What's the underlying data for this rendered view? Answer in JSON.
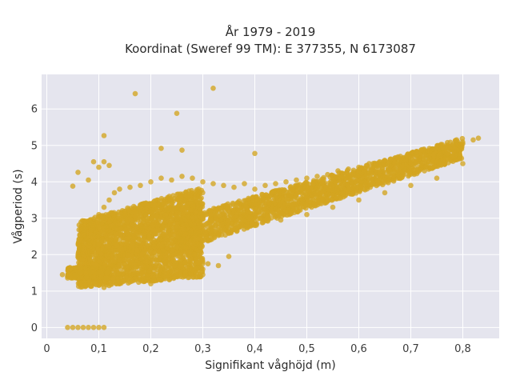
{
  "chart_data": {
    "type": "scatter",
    "title": [
      "År 1979 - 2019",
      "Koordinat (Sweref 99 TM): E 377355, N 6173087"
    ],
    "xlabel": "Signifikant våghöjd (m)",
    "ylabel": "Vågperiod (s)",
    "xlim": [
      -0.01,
      0.87
    ],
    "ylim": [
      -0.3,
      6.95
    ],
    "xticks": [
      0,
      0.1,
      0.2,
      0.3,
      0.4,
      0.5,
      0.6,
      0.7,
      0.8
    ],
    "xtick_labels": [
      "0",
      "0,1",
      "0,2",
      "0,3",
      "0,4",
      "0,5",
      "0,6",
      "0,7",
      "0,8"
    ],
    "yticks": [
      0,
      1,
      2,
      3,
      4,
      5,
      6
    ],
    "ytick_labels": [
      "0",
      "1",
      "2",
      "3",
      "4",
      "5",
      "6"
    ],
    "grid": true,
    "legend": "none",
    "colors": {
      "marker": "#D4A520",
      "plot_bg": "#E5E5EE",
      "grid": "#ffffff"
    },
    "series": [
      {
        "points": [
          [
            0.04,
            0
          ],
          [
            0.05,
            0
          ],
          [
            0.06,
            0
          ],
          [
            0.07,
            0
          ],
          [
            0.08,
            0
          ],
          [
            0.09,
            0
          ],
          [
            0.1,
            0
          ],
          [
            0.11,
            0
          ],
          [
            0.03,
            1.45
          ],
          [
            0.04,
            1.4
          ],
          [
            0.05,
            1.5
          ],
          [
            0.06,
            1.55
          ],
          [
            0.07,
            1.45
          ],
          [
            0.08,
            1.6
          ],
          [
            0.09,
            1.3
          ],
          [
            0.1,
            1.2
          ],
          [
            0.11,
            1.1
          ],
          [
            0.12,
            1.15
          ],
          [
            0.14,
            1.2
          ],
          [
            0.16,
            1.25
          ],
          [
            0.18,
            1.3
          ],
          [
            0.2,
            1.35
          ],
          [
            0.22,
            1.4
          ],
          [
            0.24,
            1.45
          ],
          [
            0.26,
            1.5
          ],
          [
            0.28,
            1.55
          ],
          [
            0.3,
            1.6
          ],
          [
            0.31,
            1.75
          ],
          [
            0.28,
            1.95
          ],
          [
            0.07,
            2.2
          ],
          [
            0.08,
            2.6
          ],
          [
            0.09,
            2.9
          ],
          [
            0.1,
            3.1
          ],
          [
            0.11,
            3.3
          ],
          [
            0.12,
            3.5
          ],
          [
            0.13,
            3.7
          ],
          [
            0.14,
            3.8
          ],
          [
            0.16,
            3.85
          ],
          [
            0.18,
            3.9
          ],
          [
            0.2,
            4.0
          ],
          [
            0.22,
            4.1
          ],
          [
            0.24,
            4.05
          ],
          [
            0.26,
            4.15
          ],
          [
            0.28,
            4.1
          ],
          [
            0.3,
            4.0
          ],
          [
            0.32,
            3.95
          ],
          [
            0.34,
            3.9
          ],
          [
            0.36,
            3.85
          ],
          [
            0.38,
            3.95
          ],
          [
            0.4,
            3.8
          ],
          [
            0.42,
            3.9
          ],
          [
            0.44,
            3.95
          ],
          [
            0.46,
            4.0
          ],
          [
            0.48,
            4.05
          ],
          [
            0.5,
            4.1
          ],
          [
            0.52,
            4.15
          ],
          [
            0.54,
            4.2
          ],
          [
            0.56,
            4.3
          ],
          [
            0.58,
            4.35
          ],
          [
            0.6,
            4.4
          ],
          [
            0.62,
            4.5
          ],
          [
            0.64,
            4.55
          ],
          [
            0.66,
            4.6
          ],
          [
            0.68,
            4.7
          ],
          [
            0.7,
            4.75
          ],
          [
            0.72,
            4.8
          ],
          [
            0.74,
            4.9
          ],
          [
            0.76,
            4.95
          ],
          [
            0.78,
            5.0
          ],
          [
            0.8,
            5.05
          ],
          [
            0.82,
            5.15
          ],
          [
            0.83,
            5.2
          ],
          [
            0.35,
            2.6
          ],
          [
            0.4,
            2.8
          ],
          [
            0.45,
            2.95
          ],
          [
            0.5,
            3.1
          ],
          [
            0.55,
            3.3
          ],
          [
            0.6,
            3.5
          ],
          [
            0.65,
            3.7
          ],
          [
            0.7,
            3.9
          ],
          [
            0.75,
            4.1
          ],
          [
            0.8,
            4.5
          ],
          [
            0.17,
            6.42
          ],
          [
            0.32,
            6.57
          ],
          [
            0.25,
            5.88
          ],
          [
            0.11,
            5.27
          ],
          [
            0.22,
            4.92
          ],
          [
            0.26,
            4.87
          ],
          [
            0.4,
            4.78
          ],
          [
            0.09,
            4.55
          ],
          [
            0.11,
            4.55
          ],
          [
            0.06,
            4.26
          ],
          [
            0.05,
            3.88
          ],
          [
            0.1,
            4.4
          ],
          [
            0.08,
            4.05
          ],
          [
            0.12,
            4.45
          ],
          [
            0.35,
            1.95
          ],
          [
            0.33,
            1.7
          ],
          [
            0.3,
            1.45
          ],
          [
            0.2,
            1.2
          ]
        ]
      }
    ]
  }
}
